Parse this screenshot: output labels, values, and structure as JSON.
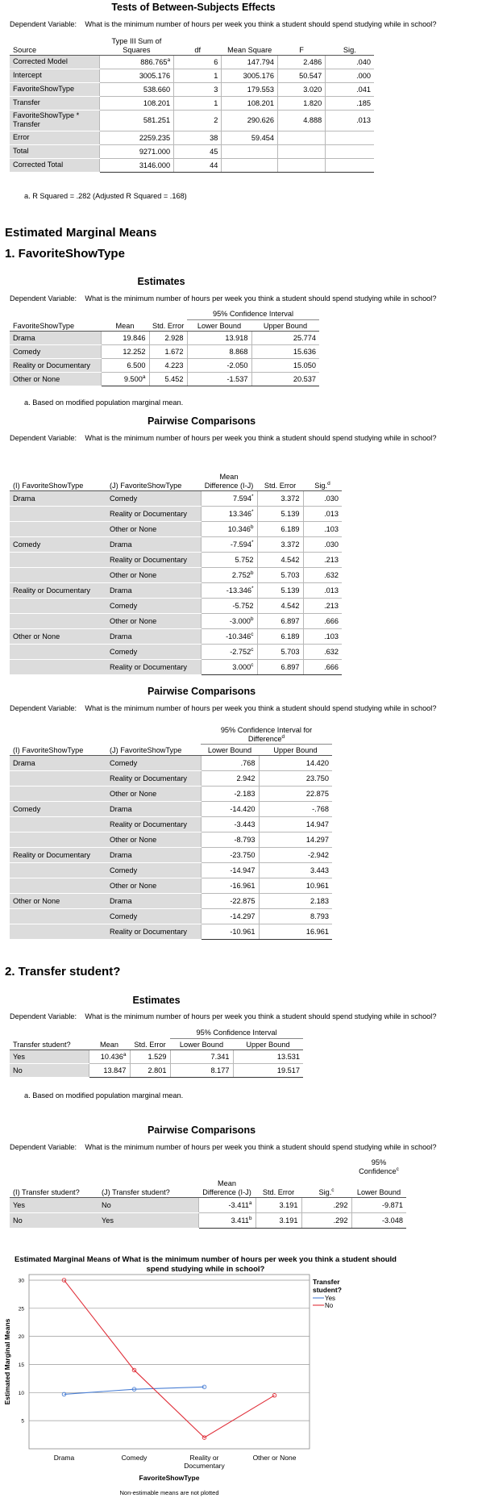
{
  "between": {
    "title": "Tests of Between-Subjects Effects",
    "dep_label": "Dependent Variable:",
    "dep_text": "What is the minimum number of hours per week you think a student should spend studying while in school?",
    "headers": [
      "Source",
      "Type III Sum of Squares",
      "df",
      "Mean Square",
      "F",
      "Sig."
    ],
    "rows": [
      {
        "source": "Corrected Model",
        "ss": "886.765",
        "ss_sup": "a",
        "df": "6",
        "ms": "147.794",
        "f": "2.486",
        "sig": ".040"
      },
      {
        "source": "Intercept",
        "ss": "3005.176",
        "ss_sup": "",
        "df": "1",
        "ms": "3005.176",
        "f": "50.547",
        "sig": ".000"
      },
      {
        "source": "FavoriteShowType",
        "ss": "538.660",
        "ss_sup": "",
        "df": "3",
        "ms": "179.553",
        "f": "3.020",
        "sig": ".041"
      },
      {
        "source": "Transfer",
        "ss": "108.201",
        "ss_sup": "",
        "df": "1",
        "ms": "108.201",
        "f": "1.820",
        "sig": ".185"
      },
      {
        "source": "FavoriteShowType * Transfer",
        "ss": "581.251",
        "ss_sup": "",
        "df": "2",
        "ms": "290.626",
        "f": "4.888",
        "sig": ".013"
      },
      {
        "source": "Error",
        "ss": "2259.235",
        "ss_sup": "",
        "df": "38",
        "ms": "59.454",
        "f": "",
        "sig": ""
      },
      {
        "source": "Total",
        "ss": "9271.000",
        "ss_sup": "",
        "df": "45",
        "ms": "",
        "f": "",
        "sig": ""
      },
      {
        "source": "Corrected Total",
        "ss": "3146.000",
        "ss_sup": "",
        "df": "44",
        "ms": "",
        "f": "",
        "sig": ""
      }
    ],
    "footnote": "a. R Squared = .282 (Adjusted R Squared = .168)"
  },
  "emm_heading": "Estimated Marginal Means",
  "section1_heading": "1. FavoriteShowType",
  "section2_heading": "2. Transfer student?",
  "est1": {
    "title": "Estimates",
    "ci_header": "95% Confidence Interval",
    "headers": [
      "FavoriteShowType",
      "Mean",
      "Std. Error",
      "Lower Bound",
      "Upper Bound"
    ],
    "rows": [
      {
        "label": "Drama",
        "mean": "19.846",
        "sup": "",
        "se": "2.928",
        "lb": "13.918",
        "ub": "25.774"
      },
      {
        "label": "Comedy",
        "mean": "12.252",
        "sup": "",
        "se": "1.672",
        "lb": "8.868",
        "ub": "15.636"
      },
      {
        "label": "Reality or Documentary",
        "mean": "6.500",
        "sup": "",
        "se": "4.223",
        "lb": "-2.050",
        "ub": "15.050"
      },
      {
        "label": "Other or None",
        "mean": "9.500",
        "sup": "a",
        "se": "5.452",
        "lb": "-1.537",
        "ub": "20.537"
      }
    ],
    "footnote": "a. Based on modified population marginal mean."
  },
  "pw1": {
    "title": "Pairwise Comparisons",
    "headers": [
      "(I) FavoriteShowType",
      "(J) FavoriteShowType",
      "Mean Difference (I-J)",
      "Std. Error",
      "Sig."
    ],
    "sig_sup": "d",
    "groups": [
      {
        "i": "Drama",
        "rows": [
          {
            "j": "Comedy",
            "md": "7.594",
            "sup": "*",
            "se": "3.372",
            "sig": ".030"
          },
          {
            "j": "Reality or Documentary",
            "md": "13.346",
            "sup": "*",
            "se": "5.139",
            "sig": ".013"
          },
          {
            "j": "Other or None",
            "md": "10.346",
            "sup": "b",
            "se": "6.189",
            "sig": ".103"
          }
        ]
      },
      {
        "i": "Comedy",
        "rows": [
          {
            "j": "Drama",
            "md": "-7.594",
            "sup": "*",
            "se": "3.372",
            "sig": ".030"
          },
          {
            "j": "Reality or Documentary",
            "md": "5.752",
            "sup": "",
            "se": "4.542",
            "sig": ".213"
          },
          {
            "j": "Other or None",
            "md": "2.752",
            "sup": "b",
            "se": "5.703",
            "sig": ".632"
          }
        ]
      },
      {
        "i": "Reality or Documentary",
        "rows": [
          {
            "j": "Drama",
            "md": "-13.346",
            "sup": "*",
            "se": "5.139",
            "sig": ".013"
          },
          {
            "j": "Comedy",
            "md": "-5.752",
            "sup": "",
            "se": "4.542",
            "sig": ".213"
          },
          {
            "j": "Other or None",
            "md": "-3.000",
            "sup": "b",
            "se": "6.897",
            "sig": ".666"
          }
        ]
      },
      {
        "i": "Other or None",
        "rows": [
          {
            "j": "Drama",
            "md": "-10.346",
            "sup": "c",
            "se": "6.189",
            "sig": ".103"
          },
          {
            "j": "Comedy",
            "md": "-2.752",
            "sup": "c",
            "se": "5.703",
            "sig": ".632"
          },
          {
            "j": "Reality or Documentary",
            "md": "3.000",
            "sup": "c",
            "se": "6.897",
            "sig": ".666"
          }
        ]
      }
    ]
  },
  "pw1b": {
    "title": "Pairwise Comparisons",
    "ci_header": "95% Confidence Interval for Difference",
    "ci_sup": "d",
    "headers": [
      "(I) FavoriteShowType",
      "(J) FavoriteShowType",
      "Lower Bound",
      "Upper Bound"
    ],
    "groups": [
      {
        "i": "Drama",
        "rows": [
          {
            "j": "Comedy",
            "lb": ".768",
            "ub": "14.420"
          },
          {
            "j": "Reality or Documentary",
            "lb": "2.942",
            "ub": "23.750"
          },
          {
            "j": "Other or None",
            "lb": "-2.183",
            "ub": "22.875"
          }
        ]
      },
      {
        "i": "Comedy",
        "rows": [
          {
            "j": "Drama",
            "lb": "-14.420",
            "ub": "-.768"
          },
          {
            "j": "Reality or Documentary",
            "lb": "-3.443",
            "ub": "14.947"
          },
          {
            "j": "Other or None",
            "lb": "-8.793",
            "ub": "14.297"
          }
        ]
      },
      {
        "i": "Reality or Documentary",
        "rows": [
          {
            "j": "Drama",
            "lb": "-23.750",
            "ub": "-2.942"
          },
          {
            "j": "Comedy",
            "lb": "-14.947",
            "ub": "3.443"
          },
          {
            "j": "Other or None",
            "lb": "-16.961",
            "ub": "10.961"
          }
        ]
      },
      {
        "i": "Other or None",
        "rows": [
          {
            "j": "Drama",
            "lb": "-22.875",
            "ub": "2.183"
          },
          {
            "j": "Comedy",
            "lb": "-14.297",
            "ub": "8.793"
          },
          {
            "j": "Reality or Documentary",
            "lb": "-10.961",
            "ub": "16.961"
          }
        ]
      }
    ]
  },
  "est2": {
    "title": "Estimates",
    "ci_header": "95% Confidence Interval",
    "headers": [
      "Transfer student?",
      "Mean",
      "Std. Error",
      "Lower Bound",
      "Upper Bound"
    ],
    "rows": [
      {
        "label": "Yes",
        "mean": "10.436",
        "sup": "a",
        "se": "1.529",
        "lb": "7.341",
        "ub": "13.531"
      },
      {
        "label": "No",
        "mean": "13.847",
        "sup": "",
        "se": "2.801",
        "lb": "8.177",
        "ub": "19.517"
      }
    ],
    "footnote": "a. Based on modified population marginal mean."
  },
  "pw2": {
    "title": "Pairwise Comparisons",
    "ci_header": "95% Confidence",
    "ci_sup": "c",
    "headers": [
      "(I) Transfer student?",
      "(J) Transfer student?",
      "Mean Difference (I-J)",
      "Std. Error",
      "Sig.",
      "Lower Bound"
    ],
    "sig_sup": "c",
    "rows": [
      {
        "i": "Yes",
        "j": "No",
        "md": "-3.411",
        "sup": "a",
        "se": "3.191",
        "sig": ".292",
        "lb": "-9.871"
      },
      {
        "i": "No",
        "j": "Yes",
        "md": "3.411",
        "sup": "b",
        "se": "3.191",
        "sig": ".292",
        "lb": "-3.048"
      }
    ]
  },
  "chart_data": {
    "type": "line",
    "title": "Estimated Marginal Means of What is the minimum number of hours per week you think a student should spend studying while in school?",
    "xlabel": "FavoriteShowType",
    "ylabel": "Estimated Marginal Means",
    "categories": [
      "Drama",
      "Comedy",
      "Reality or Documentary",
      "Other or None"
    ],
    "ylim": [
      0,
      31
    ],
    "yticks": [
      5,
      10,
      15,
      20,
      25,
      30
    ],
    "grid": true,
    "legend_title": "Transfer student?",
    "legend_position": "right",
    "footer": "Non-estimable means are not plotted",
    "series": [
      {
        "name": "Yes",
        "color": "#4a7fd4",
        "values": [
          9.7,
          10.6,
          11.0,
          null
        ]
      },
      {
        "name": "No",
        "color": "#e0303a",
        "values": [
          30.0,
          14.0,
          2.0,
          9.5
        ]
      }
    ]
  }
}
